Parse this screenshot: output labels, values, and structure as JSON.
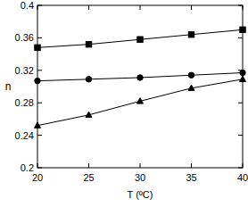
{
  "chart_data": {
    "type": "line",
    "x_label": "T (ºC)",
    "y_label": "n",
    "x": [
      20,
      25,
      30,
      35,
      40
    ],
    "series": [
      {
        "color": "#000000",
        "marker": "square",
        "line_style": "solid",
        "values": [
          0.348,
          0.352,
          0.358,
          0.364,
          0.37
        ]
      },
      {
        "color": "#000000",
        "marker": "circle",
        "line_style": "solid",
        "values": [
          0.307,
          0.309,
          0.311,
          0.314,
          0.317
        ]
      },
      {
        "color": "#000000",
        "marker": "triangle",
        "line_style": "solid",
        "values": [
          0.252,
          0.265,
          0.282,
          0.298,
          0.309
        ]
      }
    ],
    "xlim": [
      20,
      40
    ],
    "xticks": [
      20,
      25,
      30,
      35,
      40
    ],
    "ylim": [
      0.2,
      0.4
    ],
    "yticks": [
      0.2,
      0.24,
      0.28,
      0.32,
      0.36,
      0.4
    ],
    "grid": false
  }
}
